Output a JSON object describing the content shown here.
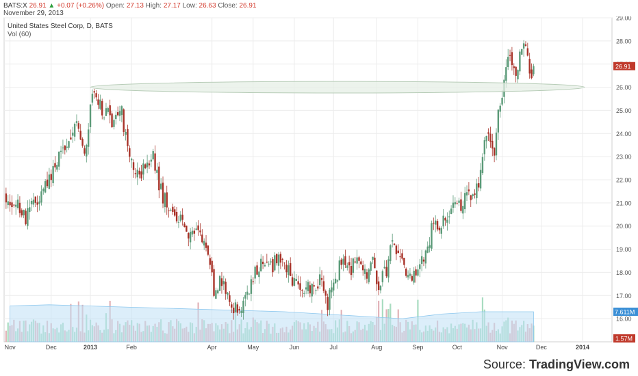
{
  "header": {
    "symbol": "BATS:X",
    "last": "26.91",
    "change": "+0.07 (+0.26%)",
    "open_label": "Open:",
    "open": "27.13",
    "high_label": "High:",
    "high": "27.17",
    "low_label": "Low:",
    "low": "26.63",
    "close_label": "Close:",
    "close": "26.91",
    "date": "November 29, 2013",
    "up_icon": "triangle-up-icon"
  },
  "colors": {
    "up": "#5b9a78",
    "down": "#a83228",
    "vol_up": "#a8dcc0",
    "vol_down": "#e2b3b8",
    "vol_ma": "#bfe0f5",
    "ellipse_fill": "#e5efe5",
    "ellipse_stroke": "#b7ccb7",
    "price_tag": "#c0392b",
    "vol_tag": "#3b8fd6",
    "vol_tag2": "#c0392b"
  },
  "chart_data": {
    "type": "candlestick",
    "title": "United States Steel Corp, D, BATS",
    "indicator": "Vol (60)",
    "ylim": [
      15.0,
      29.0
    ],
    "y_ticks": [
      "29.00",
      "28.00",
      "27.00",
      "26.00",
      "25.00",
      "24.00",
      "23.00",
      "22.00",
      "21.00",
      "20.00",
      "19.00",
      "18.00",
      "17.00",
      "16.00"
    ],
    "x_ticks": [
      {
        "label": "Nov",
        "x": 0
      },
      {
        "label": "Dec",
        "x": 21
      },
      {
        "label": "2013",
        "x": 41
      },
      {
        "label": "Feb",
        "x": 62
      },
      {
        "label": "Apr",
        "x": 103
      },
      {
        "label": "May",
        "x": 124
      },
      {
        "label": "Jun",
        "x": 145
      },
      {
        "label": "Jul",
        "x": 165
      },
      {
        "label": "Aug",
        "x": 187
      },
      {
        "label": "Sep",
        "x": 208
      },
      {
        "label": "Oct",
        "x": 228
      },
      {
        "label": "Nov",
        "x": 251
      },
      {
        "label": "Dec",
        "x": 271
      },
      {
        "label": "2014",
        "x": 292
      }
    ],
    "x_range": [
      -3,
      307
    ],
    "last_index": 267,
    "close_path": [
      [
        -2,
        21.3
      ],
      [
        4,
        20.8
      ],
      [
        8,
        20.3
      ],
      [
        12,
        21.0
      ],
      [
        18,
        21.6
      ],
      [
        24,
        22.8
      ],
      [
        29,
        23.3
      ],
      [
        34,
        24.4
      ],
      [
        38,
        23.2
      ],
      [
        42,
        25.5
      ],
      [
        46,
        25.2
      ],
      [
        52,
        24.6
      ],
      [
        57,
        24.9
      ],
      [
        60,
        23.4
      ],
      [
        64,
        22.2
      ],
      [
        69,
        22.4
      ],
      [
        73,
        23.0
      ],
      [
        75,
        22.1
      ],
      [
        77,
        21.5
      ],
      [
        82,
        20.6
      ],
      [
        87,
        20.3
      ],
      [
        91,
        19.7
      ],
      [
        95,
        19.9
      ],
      [
        100,
        19.2
      ],
      [
        104,
        17.2
      ],
      [
        108,
        17.6
      ],
      [
        112,
        16.5
      ],
      [
        117,
        16.3
      ],
      [
        121,
        17.2
      ],
      [
        125,
        17.9
      ],
      [
        129,
        18.6
      ],
      [
        133,
        18.2
      ],
      [
        137,
        18.7
      ],
      [
        140,
        18.2
      ],
      [
        145,
        17.6
      ],
      [
        150,
        17.2
      ],
      [
        154,
        17.4
      ],
      [
        158,
        17.6
      ],
      [
        162,
        16.7
      ],
      [
        166,
        17.7
      ],
      [
        170,
        18.7
      ],
      [
        174,
        18.2
      ],
      [
        178,
        18.4
      ],
      [
        182,
        18.0
      ],
      [
        185,
        18.5
      ],
      [
        188,
        17.4
      ],
      [
        192,
        18.1
      ],
      [
        194,
        19.0
      ],
      [
        196,
        19.2
      ],
      [
        199,
        18.5
      ],
      [
        203,
        18.0
      ],
      [
        207,
        17.9
      ],
      [
        211,
        18.5
      ],
      [
        215,
        19.8
      ],
      [
        219,
        20.1
      ],
      [
        223,
        20.5
      ],
      [
        226,
        21.2
      ],
      [
        229,
        20.8
      ],
      [
        233,
        21.4
      ],
      [
        236,
        21.2
      ],
      [
        239,
        22.0
      ],
      [
        242,
        23.6
      ],
      [
        245,
        23.8
      ],
      [
        247,
        23.1
      ],
      [
        249,
        24.8
      ],
      [
        251,
        25.5
      ],
      [
        253,
        27.2
      ],
      [
        256,
        26.9
      ],
      [
        258,
        26.5
      ],
      [
        260,
        27.5
      ],
      [
        262,
        27.9
      ],
      [
        264,
        27.2
      ],
      [
        265,
        26.3
      ],
      [
        266,
        26.5
      ],
      [
        267,
        26.91
      ]
    ],
    "volume_ma": [
      [
        0,
        16.55
      ],
      [
        20,
        16.6
      ],
      [
        40,
        16.55
      ],
      [
        60,
        16.5
      ],
      [
        80,
        16.45
      ],
      [
        100,
        16.4
      ],
      [
        120,
        16.35
      ],
      [
        140,
        16.3
      ],
      [
        160,
        16.2
      ],
      [
        180,
        16.1
      ],
      [
        200,
        16.0
      ],
      [
        220,
        16.2
      ],
      [
        240,
        16.3
      ],
      [
        267,
        16.3
      ]
    ],
    "price_tag": "26.91",
    "volume_tag": "7.611M",
    "volume_tag2": "1.57M",
    "annotation": {
      "type": "ellipse",
      "x_start": 41,
      "x_end": 293,
      "y_center": 26.0,
      "y_half_height": 0.25
    }
  },
  "source": {
    "prefix": "Source: ",
    "name": "TradingView.com"
  }
}
